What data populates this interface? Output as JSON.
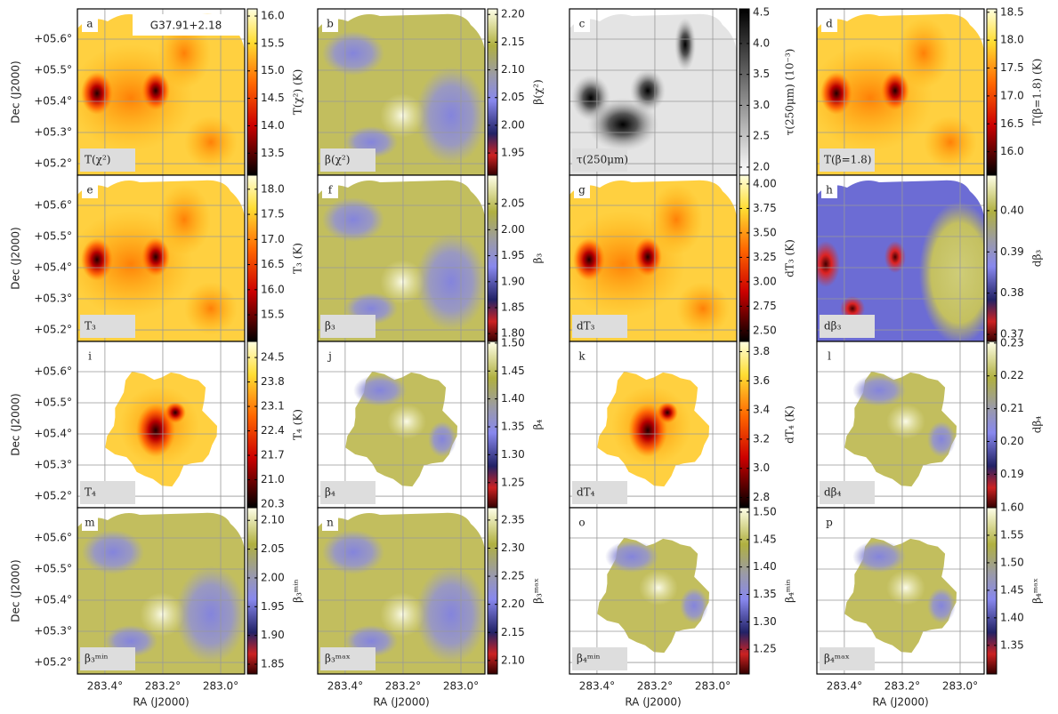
{
  "title": "G37.91+2.18",
  "x_axis": {
    "label": "RA (J2000)",
    "lim": [
      283.495,
      282.917
    ],
    "ticks": [
      {
        "value": 283.4,
        "label": "283.4°"
      },
      {
        "value": 283.2,
        "label": "283.2°"
      },
      {
        "value": 283.0,
        "label": "283.0°"
      }
    ]
  },
  "y_axis": {
    "label": "Dec (J2000)",
    "lim": [
      5.163,
      5.697
    ],
    "ticks": [
      {
        "value": 5.2,
        "label": "+05.2°"
      },
      {
        "value": 5.3,
        "label": "+05.3°"
      },
      {
        "value": 5.4,
        "label": "+05.4°"
      },
      {
        "value": 5.5,
        "label": "+05.5°"
      },
      {
        "value": 5.6,
        "label": "+05.6°"
      }
    ]
  },
  "panels": [
    {
      "letter": "a",
      "label": "T(χ²)",
      "colorbar": {
        "label": "T(χ²) (K)",
        "lim": [
          13.1,
          16.13
        ],
        "ticks": [
          13.5,
          {
            "value": 14,
            "label": "14.0"
          },
          14.5,
          {
            "value": 15,
            "label": "15.0"
          },
          15.5,
          {
            "value": 16,
            "label": "16.0"
          }
        ]
      }
    },
    {
      "letter": "b",
      "label": "β(χ²)",
      "colorbar": {
        "label": "β(χ²)",
        "lim": [
          1.91,
          2.21
        ],
        "ticks": [
          1.95,
          {
            "value": 2,
            "label": "2.00"
          },
          2.05,
          {
            "value": 2.1,
            "label": "2.10"
          },
          2.15,
          {
            "value": 2.2,
            "label": "2.20"
          }
        ]
      }
    },
    {
      "letter": "c",
      "label": "τ(250μm)",
      "colorbar": {
        "label": "τ(250μm) (10⁻³)",
        "lim": [
          1.87,
          4.56
        ],
        "ticks": [
          {
            "value": 2,
            "label": "2.0"
          },
          2.5,
          {
            "value": 3,
            "label": "3.0"
          },
          3.5,
          {
            "value": 4,
            "label": "4.0"
          },
          4.5
        ]
      }
    },
    {
      "letter": "d",
      "label": "T(β=1.8)",
      "colorbar": {
        "label": "T(β=1.8) (K)",
        "lim": [
          15.58,
          18.56
        ],
        "ticks": [
          {
            "value": 16,
            "label": "16.0"
          },
          16.5,
          {
            "value": 17,
            "label": "17.0"
          },
          17.5,
          {
            "value": 18,
            "label": "18.0"
          },
          18.5
        ]
      }
    },
    {
      "letter": "e",
      "label": "T₃",
      "colorbar": {
        "label": "T₃ (K)",
        "lim": [
          14.97,
          18.28
        ],
        "ticks": [
          15.5,
          {
            "value": 16,
            "label": "16.0"
          },
          16.5,
          {
            "value": 17,
            "label": "17.0"
          },
          17.5,
          {
            "value": 18,
            "label": "18.0"
          }
        ]
      }
    },
    {
      "letter": "f",
      "label": "β₃",
      "colorbar": {
        "label": "β₃",
        "lim": [
          1.785,
          2.105
        ],
        "ticks": [
          {
            "value": 1.8,
            "label": "1.80"
          },
          1.85,
          {
            "value": 1.9,
            "label": "1.90"
          },
          1.95,
          {
            "value": 2,
            "label": "2.00"
          },
          2.05
        ]
      }
    },
    {
      "letter": "g",
      "label": "dT₃",
      "colorbar": {
        "label": "dT₃ (K)",
        "lim": [
          2.39,
          4.09
        ],
        "ticks": [
          {
            "value": 2.5,
            "label": "2.50"
          },
          2.75,
          {
            "value": 3,
            "label": "3.00"
          },
          3.25,
          {
            "value": 3.5,
            "label": "3.50"
          },
          3.75,
          {
            "value": 4,
            "label": "4.00"
          }
        ]
      }
    },
    {
      "letter": "h",
      "label": "dβ₃",
      "colorbar": {
        "label": "dβ₃",
        "lim": [
          0.3683,
          0.4086
        ],
        "ticks": [
          0.37,
          0.38,
          0.39,
          {
            "value": 0.4,
            "label": "0.40"
          }
        ]
      }
    },
    {
      "letter": "i",
      "label": "T₄",
      "colorbar": {
        "label": "T₄ (K)",
        "lim": [
          20.2,
          24.96
        ],
        "ticks": [
          20.3,
          {
            "value": 21,
            "label": "21.0"
          },
          21.7,
          22.4,
          23.1,
          23.8,
          24.5
        ]
      }
    },
    {
      "letter": "j",
      "label": "β₄",
      "colorbar": {
        "label": "β₄",
        "lim": [
          1.205,
          1.503
        ],
        "ticks": [
          1.25,
          {
            "value": 1.3,
            "label": "1.30"
          },
          1.35,
          {
            "value": 1.4,
            "label": "1.40"
          },
          1.45,
          {
            "value": 1.5,
            "label": "1.50"
          }
        ]
      }
    },
    {
      "letter": "k",
      "label": "dT₄",
      "colorbar": {
        "label": "dT₄ (K)",
        "lim": [
          2.73,
          3.87
        ],
        "ticks": [
          2.8,
          {
            "value": 3,
            "label": "3.0"
          },
          3.2,
          3.4,
          3.6,
          3.8
        ]
      }
    },
    {
      "letter": "l",
      "label": "dβ₄",
      "colorbar": {
        "label": "dβ₄",
        "lim": [
          0.1798,
          0.2305
        ],
        "ticks": [
          0.19,
          {
            "value": 0.2,
            "label": "0.20"
          },
          0.21,
          0.22,
          0.23
        ]
      }
    },
    {
      "letter": "m",
      "label": "β₃ᵐⁱⁿ",
      "colorbar": {
        "label": "β₃ᵐⁱⁿ",
        "lim": [
          1.833,
          2.122
        ],
        "ticks": [
          1.85,
          {
            "value": 1.9,
            "label": "1.90"
          },
          1.95,
          {
            "value": 2,
            "label": "2.00"
          },
          2.05,
          {
            "value": 2.1,
            "label": "2.10"
          }
        ]
      }
    },
    {
      "letter": "n",
      "label": "β₃ᵐᵃˣ",
      "colorbar": {
        "label": "β₃ᵐᵃˣ",
        "lim": [
          2.076,
          2.372
        ],
        "ticks": [
          {
            "value": 2.1,
            "label": "2.10"
          },
          2.15,
          {
            "value": 2.2,
            "label": "2.20"
          },
          2.25,
          {
            "value": 2.3,
            "label": "2.30"
          },
          2.35
        ]
      }
    },
    {
      "letter": "o",
      "label": "β₄ᵐⁱⁿ",
      "colorbar": {
        "label": "β₄ᵐⁱⁿ",
        "lim": [
          1.205,
          1.508
        ],
        "ticks": [
          1.25,
          {
            "value": 1.3,
            "label": "1.30"
          },
          1.35,
          {
            "value": 1.4,
            "label": "1.40"
          },
          1.45,
          {
            "value": 1.5,
            "label": "1.50"
          }
        ]
      }
    },
    {
      "letter": "p",
      "label": "β₄ᵐᵃˣ",
      "colorbar": {
        "label": "β₄ᵐᵃˣ",
        "lim": [
          1.298,
          1.6
        ],
        "ticks": [
          1.35,
          {
            "value": 1.4,
            "label": "1.40"
          },
          1.45,
          {
            "value": 1.5,
            "label": "1.50"
          },
          1.55,
          {
            "value": 1.6,
            "label": "1.60"
          }
        ]
      }
    }
  ]
}
